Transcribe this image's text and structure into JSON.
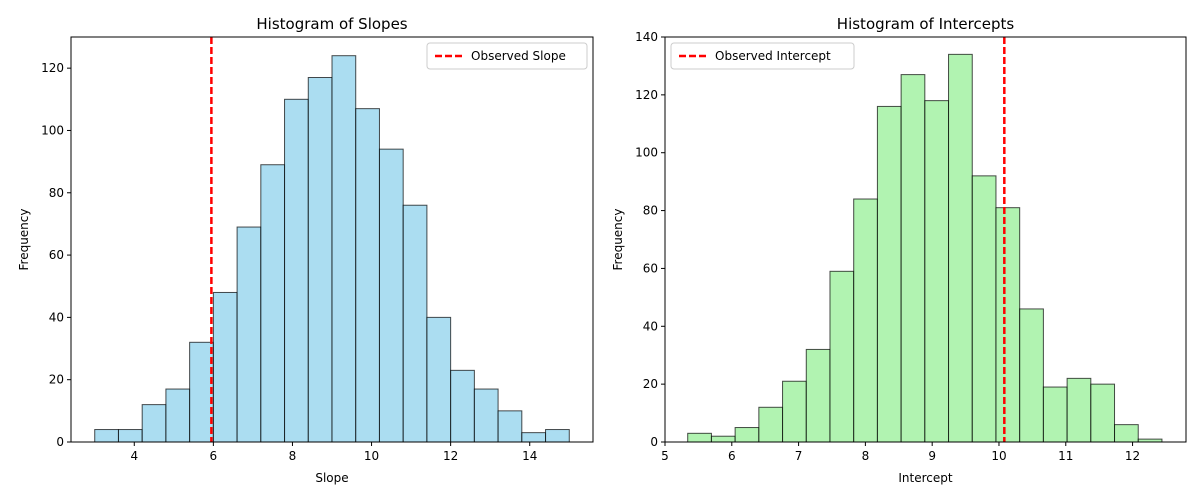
{
  "chart_data": [
    {
      "type": "bar",
      "subtype": "histogram",
      "title": "Histogram of Slopes",
      "xlabel": "Slope",
      "ylabel": "Frequency",
      "xlim": [
        2.4,
        15.6
      ],
      "ylim": [
        0,
        130
      ],
      "xticks": [
        4,
        6,
        8,
        10,
        12,
        14
      ],
      "yticks": [
        0,
        20,
        40,
        60,
        80,
        100,
        120
      ],
      "bin_start": 3.0,
      "bin_width": 0.6,
      "values": [
        4,
        4,
        12,
        17,
        32,
        48,
        69,
        89,
        110,
        117,
        124,
        107,
        94,
        76,
        40,
        23,
        17,
        10,
        3,
        4
      ],
      "bar_color": "#87CEEB",
      "edge_color": "#000000",
      "observed": {
        "label": "Observed Slope",
        "value": 5.95,
        "color": "#FF0000"
      },
      "legend_position": "top-right",
      "grid": false
    },
    {
      "type": "bar",
      "subtype": "histogram",
      "title": "Histogram of Intercepts",
      "xlabel": "Intercept",
      "ylabel": "Frequency",
      "xlim": [
        5.0,
        12.8
      ],
      "ylim": [
        0,
        140
      ],
      "xticks": [
        5,
        6,
        7,
        8,
        9,
        10,
        11,
        12
      ],
      "yticks": [
        0,
        20,
        40,
        60,
        80,
        100,
        120,
        140
      ],
      "bin_start": 5.34,
      "bin_width": 0.355,
      "values": [
        3,
        2,
        5,
        12,
        21,
        32,
        59,
        84,
        116,
        127,
        118,
        134,
        92,
        81,
        46,
        19,
        22,
        20,
        6,
        1
      ],
      "bar_color": "#90EE90",
      "edge_color": "#000000",
      "observed": {
        "label": "Observed Intercept",
        "value": 10.08,
        "color": "#FF0000"
      },
      "legend_position": "top-left",
      "grid": false
    }
  ]
}
